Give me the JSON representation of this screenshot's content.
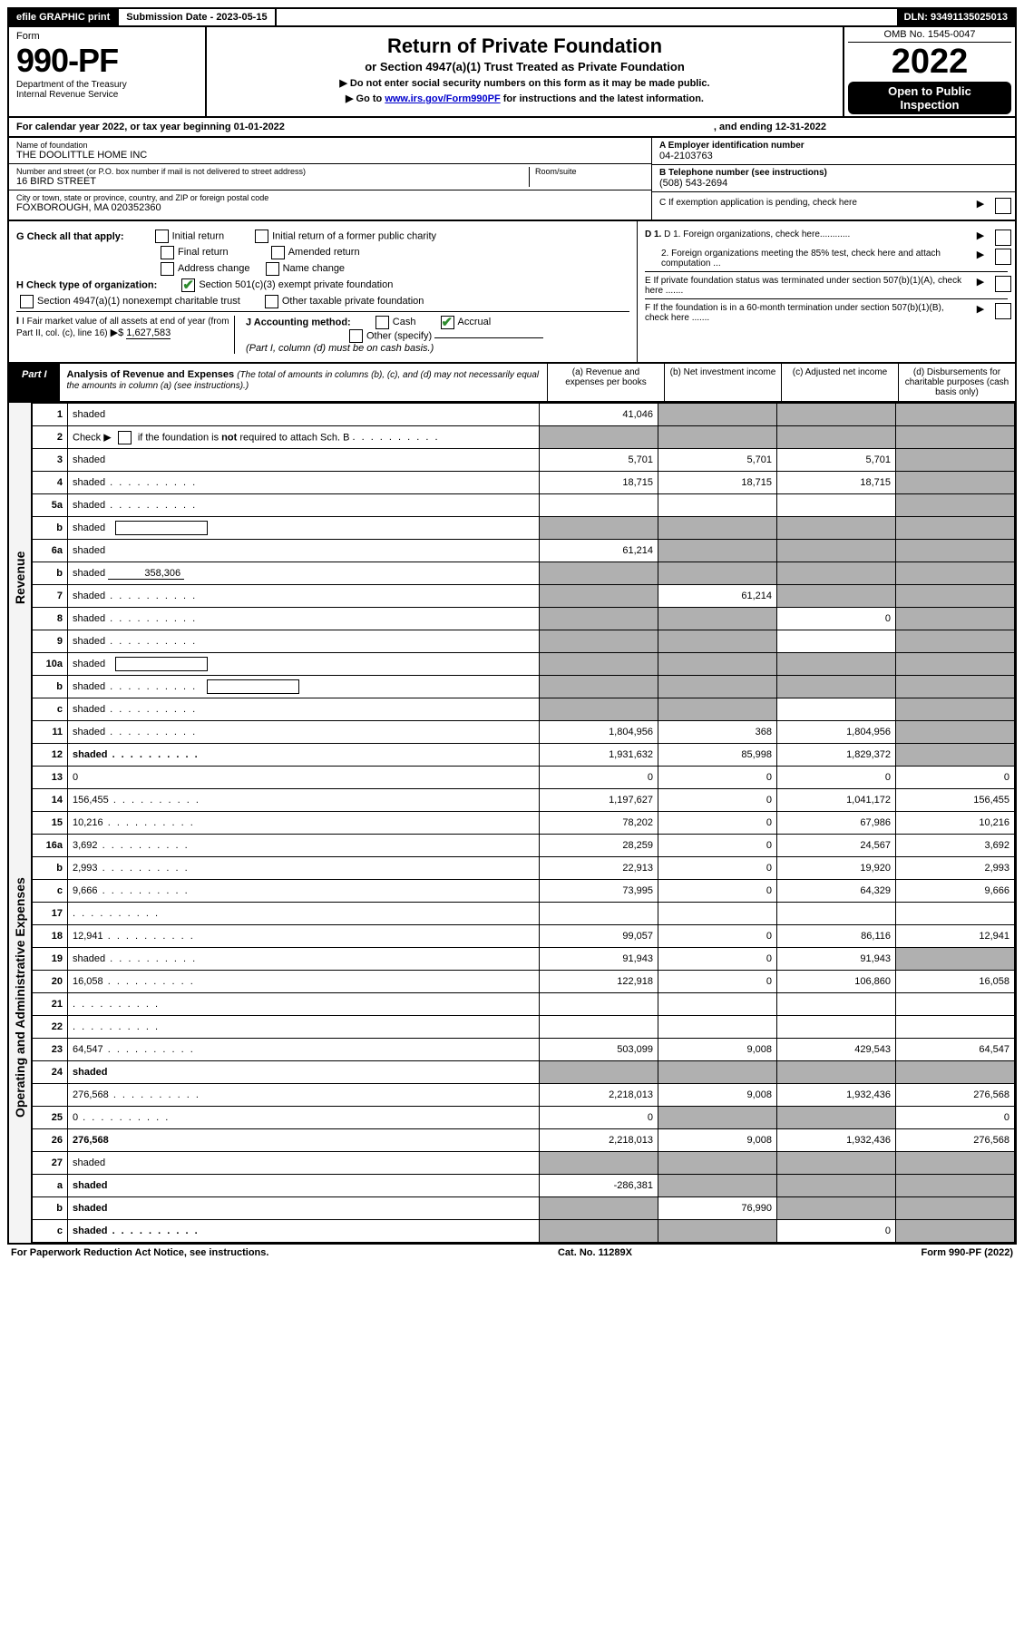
{
  "top": {
    "efile": "efile GRAPHIC print",
    "sub_label": "Submission Date - 2023-05-15",
    "dln": "DLN: 93491135025013"
  },
  "header": {
    "form_word": "Form",
    "form_no": "990-PF",
    "dept": "Department of the Treasury",
    "irs": "Internal Revenue Service",
    "title": "Return of Private Foundation",
    "subtitle": "or Section 4947(a)(1) Trust Treated as Private Foundation",
    "note1": "▶ Do not enter social security numbers on this form as it may be made public.",
    "note2_pre": "▶ Go to ",
    "note2_link": "www.irs.gov/Form990PF",
    "note2_post": " for instructions and the latest information.",
    "omb": "OMB No. 1545-0047",
    "year": "2022",
    "open1": "Open to Public",
    "open2": "Inspection"
  },
  "cal": {
    "text1": "For calendar year 2022, or tax year beginning 01-01-2022",
    "text2": ", and ending 12-31-2022"
  },
  "entity": {
    "name_label": "Name of foundation",
    "name": "THE DOOLITTLE HOME INC",
    "addr_label": "Number and street (or P.O. box number if mail is not delivered to street address)",
    "addr": "16 BIRD STREET",
    "room_label": "Room/suite",
    "city_label": "City or town, state or province, country, and ZIP or foreign postal code",
    "city": "FOXBOROUGH, MA  020352360",
    "a_label": "A Employer identification number",
    "a_val": "04-2103763",
    "b_label": "B Telephone number (see instructions)",
    "b_val": "(508) 543-2694",
    "c_label": "C If exemption application is pending, check here"
  },
  "checks": {
    "g_label": "G Check all that apply:",
    "g1": "Initial return",
    "g2": "Initial return of a former public charity",
    "g3": "Final return",
    "g4": "Amended return",
    "g5": "Address change",
    "g6": "Name change",
    "h_label": "H Check type of organization:",
    "h1": "Section 501(c)(3) exempt private foundation",
    "h2": "Section 4947(a)(1) nonexempt charitable trust",
    "h3": "Other taxable private foundation",
    "i_label": "I Fair market value of all assets at end of year (from Part II, col. (c), line 16)",
    "i_prefix": "▶$",
    "i_val": "1,627,583",
    "j_label": "J Accounting method:",
    "j1": "Cash",
    "j2": "Accrual",
    "j3": "Other (specify)",
    "j_note": "(Part I, column (d) must be on cash basis.)",
    "d1": "D 1. Foreign organizations, check here............",
    "d2": "2. Foreign organizations meeting the 85% test, check here and attach computation ...",
    "e": "E  If private foundation status was terminated under section 507(b)(1)(A), check here .......",
    "f": "F  If the foundation is in a 60-month termination under section 507(b)(1)(B), check here .......",
    "arrow": "▶"
  },
  "part1": {
    "label": "Part I",
    "title": "Analysis of Revenue and Expenses",
    "title_note": "(The total of amounts in columns (b), (c), and (d) may not necessarily equal the amounts in column (a) (see instructions).)",
    "col_a": "(a)   Revenue and expenses per books",
    "col_b": "(b)   Net investment income",
    "col_c": "(c)   Adjusted net income",
    "col_d": "(d)   Disbursements for charitable purposes (cash basis only)"
  },
  "side": {
    "revenue": "Revenue",
    "expenses": "Operating and Administrative Expenses"
  },
  "rows": [
    {
      "n": "1",
      "d": "shaded",
      "a": "41,046",
      "b": "shaded",
      "c": "shaded",
      "sec": "rev"
    },
    {
      "n": "2",
      "d": "shaded",
      "a": "shaded",
      "b": "shaded",
      "c": "shaded",
      "sec": "rev",
      "dots": true,
      "bold_not": true
    },
    {
      "n": "3",
      "d": "shaded",
      "a": "5,701",
      "b": "5,701",
      "c": "5,701",
      "sec": "rev"
    },
    {
      "n": "4",
      "d": "shaded",
      "a": "18,715",
      "b": "18,715",
      "c": "18,715",
      "sec": "rev",
      "dots": true
    },
    {
      "n": "5a",
      "d": "shaded",
      "a": "",
      "b": "",
      "c": "",
      "sec": "rev",
      "dots": true
    },
    {
      "n": "b",
      "d": "shaded",
      "a": "shaded",
      "b": "shaded",
      "c": "shaded",
      "sec": "rev",
      "inline_box": true
    },
    {
      "n": "6a",
      "d": "shaded",
      "a": "61,214",
      "b": "shaded",
      "c": "shaded",
      "sec": "rev"
    },
    {
      "n": "b",
      "d": "shaded",
      "a": "shaded",
      "b": "shaded",
      "c": "shaded",
      "sec": "rev",
      "inline_val": "358,306"
    },
    {
      "n": "7",
      "d": "shaded",
      "a": "shaded",
      "b": "61,214",
      "c": "shaded",
      "sec": "rev",
      "dots": true
    },
    {
      "n": "8",
      "d": "shaded",
      "a": "shaded",
      "b": "shaded",
      "c": "0",
      "sec": "rev",
      "dots": true
    },
    {
      "n": "9",
      "d": "shaded",
      "a": "shaded",
      "b": "shaded",
      "c": "",
      "sec": "rev",
      "dots": true
    },
    {
      "n": "10a",
      "d": "shaded",
      "a": "shaded",
      "b": "shaded",
      "c": "shaded",
      "sec": "rev",
      "inline_box": true
    },
    {
      "n": "b",
      "d": "shaded",
      "a": "shaded",
      "b": "shaded",
      "c": "shaded",
      "sec": "rev",
      "inline_box": true,
      "dots": true
    },
    {
      "n": "c",
      "d": "shaded",
      "a": "shaded",
      "b": "shaded",
      "c": "",
      "sec": "rev",
      "dots": true
    },
    {
      "n": "11",
      "d": "shaded",
      "a": "1,804,956",
      "b": "368",
      "c": "1,804,956",
      "sec": "rev",
      "dots": true
    },
    {
      "n": "12",
      "d": "shaded",
      "a": "1,931,632",
      "b": "85,998",
      "c": "1,829,372",
      "sec": "rev",
      "bold": true,
      "dots": true
    },
    {
      "n": "13",
      "d": "0",
      "a": "0",
      "b": "0",
      "c": "0",
      "sec": "exp"
    },
    {
      "n": "14",
      "d": "156,455",
      "a": "1,197,627",
      "b": "0",
      "c": "1,041,172",
      "sec": "exp",
      "dots": true
    },
    {
      "n": "15",
      "d": "10,216",
      "a": "78,202",
      "b": "0",
      "c": "67,986",
      "sec": "exp",
      "dots": true
    },
    {
      "n": "16a",
      "d": "3,692",
      "a": "28,259",
      "b": "0",
      "c": "24,567",
      "sec": "exp",
      "dots": true
    },
    {
      "n": "b",
      "d": "2,993",
      "a": "22,913",
      "b": "0",
      "c": "19,920",
      "sec": "exp",
      "dots": true
    },
    {
      "n": "c",
      "d": "9,666",
      "a": "73,995",
      "b": "0",
      "c": "64,329",
      "sec": "exp",
      "dots": true
    },
    {
      "n": "17",
      "d": "",
      "a": "",
      "b": "",
      "c": "",
      "sec": "exp",
      "dots": true
    },
    {
      "n": "18",
      "d": "12,941",
      "a": "99,057",
      "b": "0",
      "c": "86,116",
      "sec": "exp",
      "dots": true
    },
    {
      "n": "19",
      "d": "shaded",
      "a": "91,943",
      "b": "0",
      "c": "91,943",
      "sec": "exp",
      "dots": true
    },
    {
      "n": "20",
      "d": "16,058",
      "a": "122,918",
      "b": "0",
      "c": "106,860",
      "sec": "exp",
      "dots": true
    },
    {
      "n": "21",
      "d": "",
      "a": "",
      "b": "",
      "c": "",
      "sec": "exp",
      "dots": true
    },
    {
      "n": "22",
      "d": "",
      "a": "",
      "b": "",
      "c": "",
      "sec": "exp",
      "dots": true
    },
    {
      "n": "23",
      "d": "64,547",
      "a": "503,099",
      "b": "9,008",
      "c": "429,543",
      "sec": "exp",
      "dots": true
    },
    {
      "n": "24",
      "d": "shaded",
      "a": "shaded",
      "b": "shaded",
      "c": "shaded",
      "sec": "exp",
      "bold": true
    },
    {
      "n": "",
      "d": "276,568",
      "a": "2,218,013",
      "b": "9,008",
      "c": "1,932,436",
      "sec": "exp",
      "dots": true
    },
    {
      "n": "25",
      "d": "0",
      "a": "0",
      "b": "shaded",
      "c": "shaded",
      "sec": "exp",
      "dots": true
    },
    {
      "n": "26",
      "d": "276,568",
      "a": "2,218,013",
      "b": "9,008",
      "c": "1,932,436",
      "sec": "exp",
      "bold": true
    },
    {
      "n": "27",
      "d": "shaded",
      "a": "shaded",
      "b": "shaded",
      "c": "shaded",
      "sec": "bot"
    },
    {
      "n": "a",
      "d": "shaded",
      "a": "-286,381",
      "b": "shaded",
      "c": "shaded",
      "sec": "bot",
      "bold": true
    },
    {
      "n": "b",
      "d": "shaded",
      "a": "shaded",
      "b": "76,990",
      "c": "shaded",
      "sec": "bot",
      "bold": true
    },
    {
      "n": "c",
      "d": "shaded",
      "a": "shaded",
      "b": "shaded",
      "c": "0",
      "sec": "bot",
      "bold": true,
      "dots": true
    }
  ],
  "footer": {
    "left": "For Paperwork Reduction Act Notice, see instructions.",
    "mid": "Cat. No. 11289X",
    "right": "Form 990-PF (2022)"
  }
}
